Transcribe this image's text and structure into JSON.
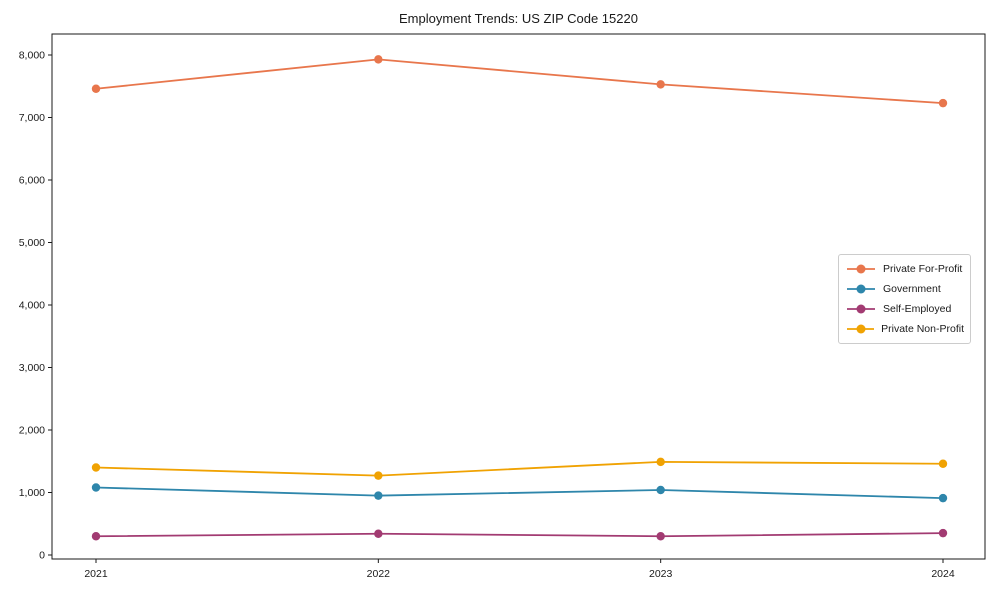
{
  "chart_data": {
    "type": "line",
    "title": "Employment Trends: US ZIP Code 15220",
    "categories": [
      "2021",
      "2022",
      "2023",
      "2024"
    ],
    "series": [
      {
        "name": "Private For-Profit",
        "color": "#E8764C",
        "values": [
          7460,
          7930,
          7530,
          7230
        ]
      },
      {
        "name": "Government",
        "color": "#2E86AB",
        "values": [
          1080,
          950,
          1040,
          910
        ]
      },
      {
        "name": "Self-Employed",
        "color": "#A23B72",
        "values": [
          300,
          340,
          300,
          350
        ]
      },
      {
        "name": "Private Non-Profit",
        "color": "#F0A202",
        "values": [
          1400,
          1270,
          1490,
          1460
        ]
      }
    ],
    "xlabel": "",
    "ylabel": "",
    "ylim": [
      0,
      8000
    ],
    "yticks": [
      0,
      1000,
      2000,
      3000,
      4000,
      5000,
      6000,
      7000,
      8000
    ],
    "ytick_labels": [
      "0",
      "1,000",
      "2,000",
      "3,000",
      "4,000",
      "5,000",
      "6,000",
      "7,000",
      "8,000"
    ],
    "legend_position": "center right",
    "grid": false,
    "axis_color": "#1a1a1a"
  }
}
